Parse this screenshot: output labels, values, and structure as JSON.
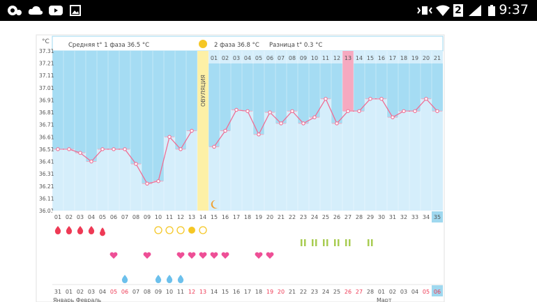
{
  "status_bar": {
    "time": "9:37",
    "sim_badge": "2",
    "icons": [
      "settings-notification-icon",
      "cloud-icon",
      "youtube-icon",
      "gallery-icon",
      "vibrate-icon",
      "wifi-icon",
      "signal-icon",
      "battery-icon"
    ]
  },
  "header": {
    "unit": "°C",
    "phase1": "Средняя t° 1 фаза 36.5 °C",
    "phase2": "2 фаза 36.8 °C",
    "diff": "Разница t° 0.3 °C",
    "ovulation": "ОВУЛЯЦИЯ"
  },
  "colors": {
    "phase_dark": "#a5dcf3",
    "phase_light": "#d5eefb",
    "ovulation": "#fdf0a6",
    "pink_col": "#f6a9c0",
    "line": "#ee6f95",
    "drop": "#ee3a55",
    "heart": "#ee4f96",
    "egg_yellow": "#f5c725",
    "green": "#a8cc52",
    "blue_drop": "#6cc0ec",
    "text_red": "#ee3a55"
  },
  "chart_data": {
    "type": "line",
    "y_ticks": [
      "37.31",
      "37.21",
      "37.11",
      "37.01",
      "36.91",
      "36.81",
      "36.71",
      "36.61",
      "36.51",
      "36.41",
      "36.31",
      "36.21",
      "36.11",
      "36.01"
    ],
    "ylim": [
      36.01,
      37.31
    ],
    "cycle_days": [
      "01",
      "02",
      "03",
      "04",
      "05",
      "06",
      "07",
      "08",
      "09",
      "10",
      "11",
      "12",
      "13",
      "14",
      "15",
      "16",
      "17",
      "18",
      "19",
      "20",
      "21",
      "22",
      "23",
      "24",
      "25",
      "26",
      "27",
      "28",
      "29",
      "30",
      "31",
      "32",
      "33",
      "34",
      "35"
    ],
    "phase2_days": [
      "01",
      "02",
      "03",
      "04",
      "05",
      "06",
      "07",
      "08",
      "09",
      "10",
      "11",
      "12",
      "13",
      "14",
      "15",
      "16",
      "17",
      "18",
      "19",
      "20",
      "21"
    ],
    "temps": [
      36.51,
      36.51,
      36.48,
      36.41,
      36.51,
      36.51,
      36.51,
      36.39,
      36.23,
      36.25,
      36.61,
      36.51,
      36.66,
      null,
      36.53,
      36.66,
      36.83,
      36.82,
      36.63,
      36.81,
      36.72,
      36.82,
      36.72,
      36.77,
      36.92,
      36.72,
      36.82,
      36.82,
      36.92,
      36.92,
      36.77,
      36.82,
      36.82,
      36.92,
      36.82
    ],
    "ovulation_day": 14,
    "highlight_day": 27,
    "today_index": 35
  },
  "markers": {
    "period_days": [
      1,
      2,
      3,
      4,
      5
    ],
    "egg_outline_days": [
      10,
      11,
      12,
      14
    ],
    "egg_filled_days": [
      13
    ],
    "moon_day": 15,
    "green_days": [
      23,
      24,
      25,
      26,
      27,
      29
    ],
    "heart_days": [
      6,
      9,
      12,
      13,
      14,
      15,
      16,
      19,
      20
    ],
    "blue_drop_days": [
      7,
      10,
      11,
      12
    ]
  },
  "dates": [
    "31",
    "01",
    "02",
    "03",
    "04",
    "05",
    "06",
    "07",
    "08",
    "09",
    "10",
    "11",
    "12",
    "13",
    "14",
    "15",
    "16",
    "17",
    "18",
    "19",
    "20",
    "21",
    "22",
    "23",
    "24",
    "25",
    "26",
    "27",
    "28",
    "01",
    "02",
    "03",
    "04",
    "05",
    "06"
  ],
  "red_date_idx": [
    5,
    6,
    12,
    13,
    19,
    20,
    26,
    27,
    33,
    34
  ],
  "month_labels": {
    "left": "Январь Февраль",
    "right": "Март"
  }
}
